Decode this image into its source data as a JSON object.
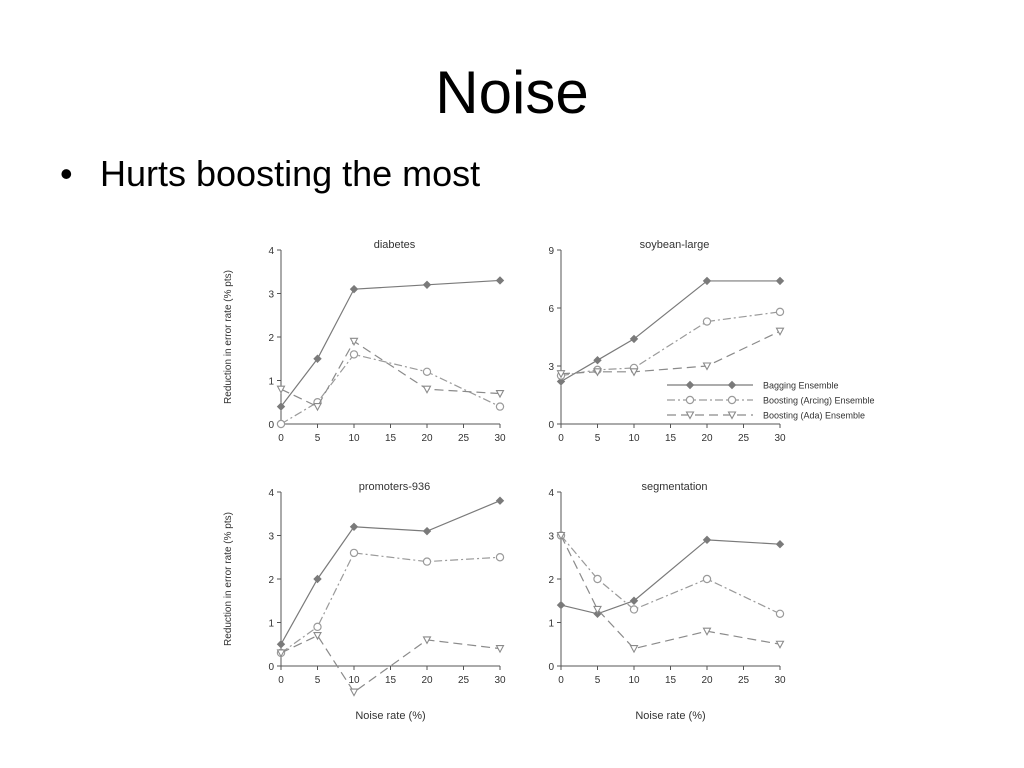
{
  "slide": {
    "title": "Noise",
    "bullet": "Hurts boosting the most"
  },
  "colors": {
    "axis": "#555555",
    "bagging": "#7a7a7a",
    "arcing": "#9a9a9a",
    "ada": "#8a8a8a"
  },
  "legend": {
    "placement": "bottom-right of soybean-large panel",
    "entries": [
      "Bagging Ensemble",
      "Boosting (Arcing) Ensemble",
      "Boosting (Ada) Ensemble"
    ]
  },
  "chart_data": [
    {
      "type": "line",
      "title": "diabetes",
      "xlabel": "",
      "ylabel": "Reduction in error rate (% pts)",
      "x": [
        0,
        5,
        10,
        15,
        20,
        25,
        30
      ],
      "ylim": [
        0,
        4
      ],
      "yticks": [
        0,
        1,
        2,
        3,
        4
      ],
      "series": [
        {
          "name": "Bagging Ensemble",
          "x": [
            0,
            5,
            10,
            20,
            30
          ],
          "values": [
            0.4,
            1.5,
            3.1,
            3.2,
            3.3
          ]
        },
        {
          "name": "Boosting (Arcing) Ensemble",
          "x": [
            0,
            5,
            10,
            20,
            30
          ],
          "values": [
            0.0,
            0.5,
            1.6,
            1.2,
            0.4
          ]
        },
        {
          "name": "Boosting (Ada) Ensemble",
          "x": [
            0,
            5,
            10,
            20,
            30
          ],
          "values": [
            0.8,
            0.4,
            1.9,
            0.8,
            0.7
          ]
        }
      ]
    },
    {
      "type": "line",
      "title": "soybean-large",
      "xlabel": "",
      "ylabel": "",
      "x": [
        0,
        5,
        10,
        15,
        20,
        25,
        30
      ],
      "ylim": [
        0,
        9
      ],
      "yticks": [
        0,
        3,
        6,
        9
      ],
      "series": [
        {
          "name": "Bagging Ensemble",
          "x": [
            0,
            5,
            10,
            20,
            30
          ],
          "values": [
            2.2,
            3.3,
            4.4,
            7.4,
            7.4
          ]
        },
        {
          "name": "Boosting (Arcing) Ensemble",
          "x": [
            0,
            5,
            10,
            20,
            30
          ],
          "values": [
            2.5,
            2.8,
            2.9,
            5.3,
            5.8
          ]
        },
        {
          "name": "Boosting (Ada) Ensemble",
          "x": [
            0,
            5,
            10,
            20,
            30
          ],
          "values": [
            2.6,
            2.7,
            2.7,
            3.0,
            4.8
          ]
        }
      ]
    },
    {
      "type": "line",
      "title": "promoters-936",
      "xlabel": "Noise rate (%)",
      "ylabel": "Reduction in error rate (% pts)",
      "x": [
        0,
        5,
        10,
        15,
        20,
        25,
        30
      ],
      "ylim": [
        0,
        4
      ],
      "yticks": [
        0,
        1,
        2,
        3,
        4
      ],
      "series": [
        {
          "name": "Bagging Ensemble",
          "x": [
            0,
            5,
            10,
            20,
            30
          ],
          "values": [
            0.5,
            2.0,
            3.2,
            3.1,
            3.8
          ]
        },
        {
          "name": "Boosting (Arcing) Ensemble",
          "x": [
            0,
            5,
            10,
            20,
            30
          ],
          "values": [
            0.3,
            0.9,
            2.6,
            2.4,
            2.5
          ]
        },
        {
          "name": "Boosting (Ada) Ensemble",
          "x": [
            0,
            5,
            10,
            20,
            30
          ],
          "values": [
            0.3,
            0.7,
            -0.6,
            0.6,
            0.4
          ]
        }
      ]
    },
    {
      "type": "line",
      "title": "segmentation",
      "xlabel": "Noise rate (%)",
      "ylabel": "",
      "x": [
        0,
        5,
        10,
        15,
        20,
        25,
        30
      ],
      "ylim": [
        0,
        4
      ],
      "yticks": [
        0,
        1,
        2,
        3,
        4
      ],
      "series": [
        {
          "name": "Bagging Ensemble",
          "x": [
            0,
            5,
            10,
            20,
            30
          ],
          "values": [
            1.4,
            1.2,
            1.5,
            2.9,
            2.8
          ]
        },
        {
          "name": "Boosting (Arcing) Ensemble",
          "x": [
            0,
            5,
            10,
            20,
            30
          ],
          "values": [
            3.0,
            2.0,
            1.3,
            2.0,
            1.2
          ]
        },
        {
          "name": "Boosting (Ada) Ensemble",
          "x": [
            0,
            5,
            10,
            20,
            30
          ],
          "values": [
            3.0,
            1.3,
            0.4,
            0.8,
            0.5
          ]
        }
      ]
    }
  ]
}
